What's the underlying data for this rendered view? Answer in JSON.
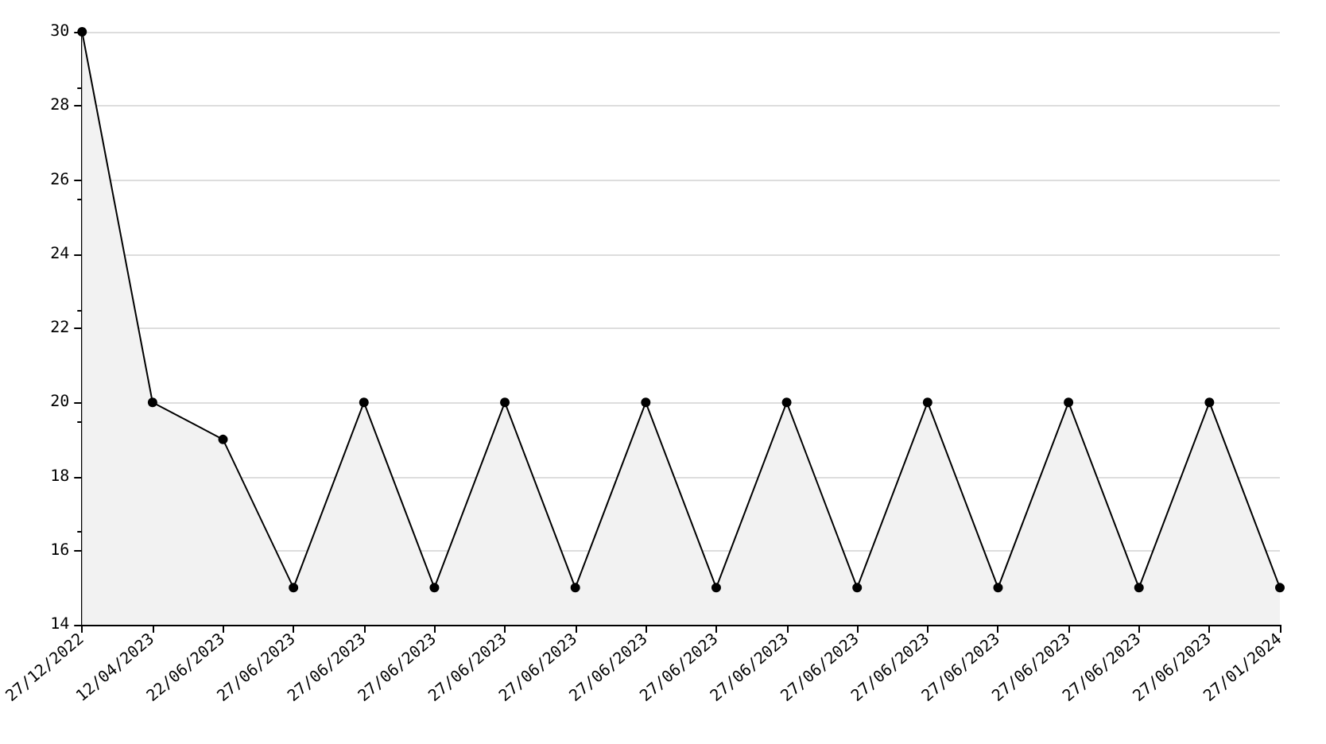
{
  "chart_data": {
    "type": "area",
    "categories": [
      "27/12/2022",
      "12/04/2023",
      "22/06/2023",
      "27/06/2023",
      "27/06/2023",
      "27/06/2023",
      "27/06/2023",
      "27/06/2023",
      "27/06/2023",
      "27/06/2023",
      "27/06/2023",
      "27/06/2023",
      "27/06/2023",
      "27/06/2023",
      "27/06/2023",
      "27/06/2023",
      "27/06/2023",
      "27/01/2024"
    ],
    "series": [
      {
        "color": "#000000",
        "values": [
          30,
          20,
          19,
          15,
          20,
          15,
          20,
          15,
          20,
          15,
          20,
          15,
          20,
          15,
          20,
          15,
          20,
          15
        ]
      }
    ],
    "ylim": [
      14,
      30
    ],
    "yticks": [
      14,
      16,
      18,
      20,
      22,
      24,
      26,
      28,
      30
    ],
    "grid": "y",
    "marker": "circle",
    "line_style": "solid"
  }
}
